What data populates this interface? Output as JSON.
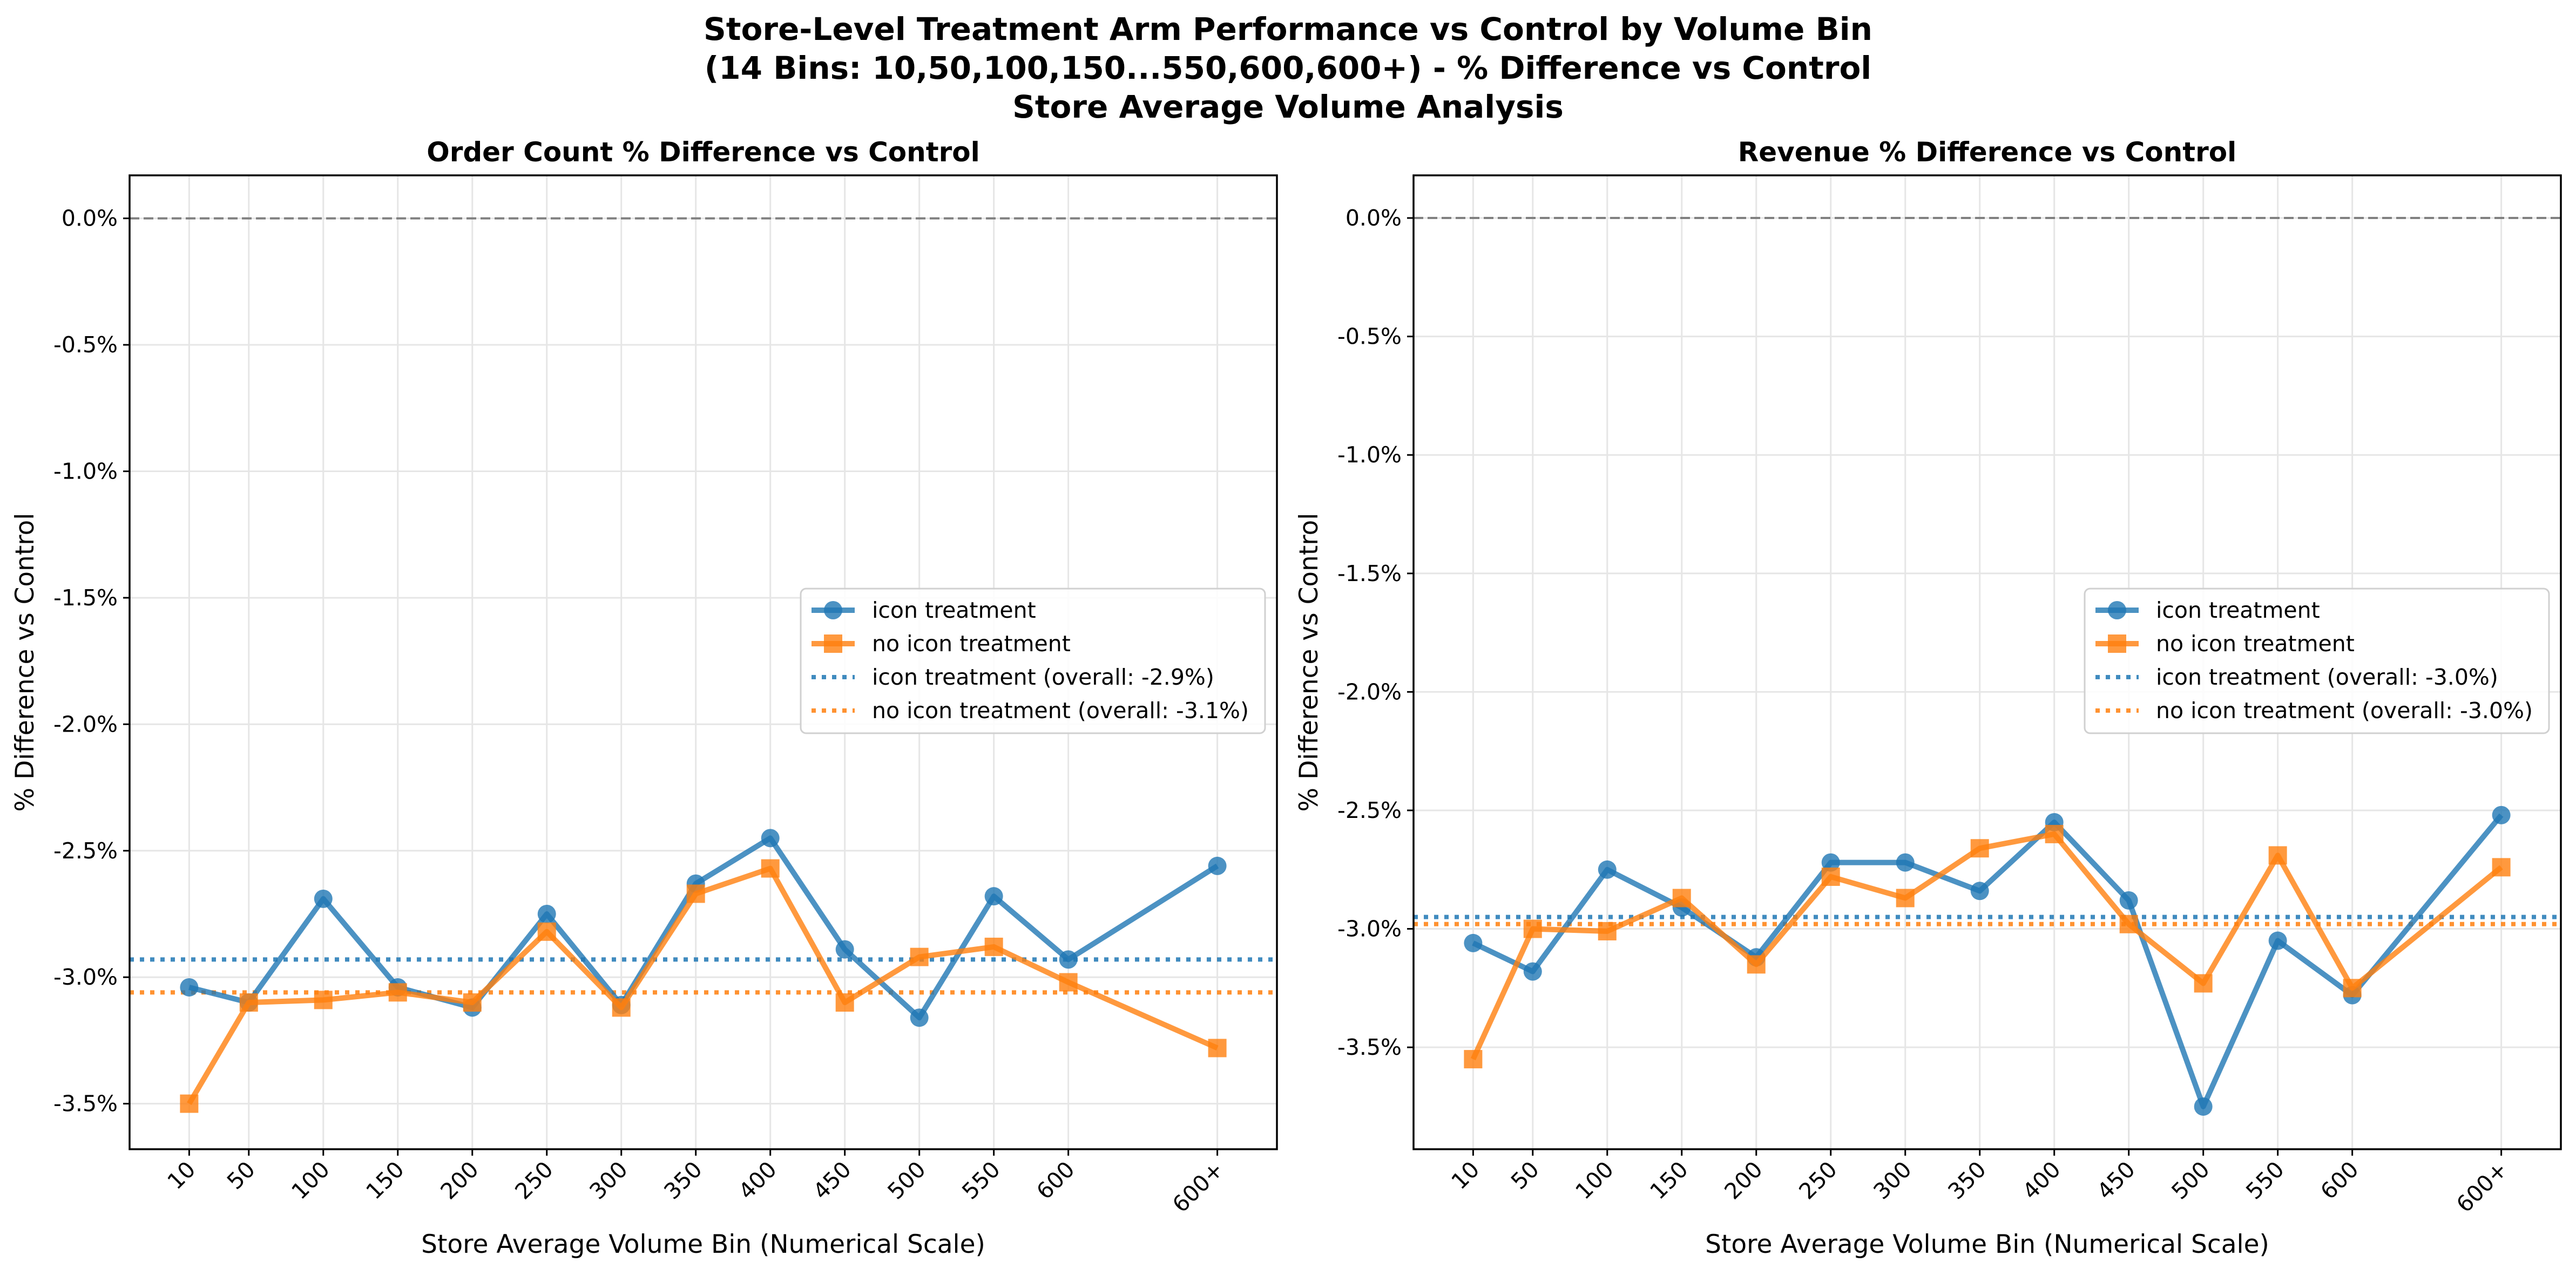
{
  "figure": {
    "title_lines": [
      "Store-Level Treatment Arm Performance vs Control by Volume Bin",
      "(14 Bins: 10,50,100,150...550,600,600+) - % Difference vs Control",
      "Store Average Volume Analysis"
    ]
  },
  "colors": {
    "icon": "#1f77b4",
    "no_icon": "#ff7f0e",
    "zero_line": "#808080",
    "grid": "#e6e6e6"
  },
  "chart_data": [
    {
      "type": "line",
      "title": "Order Count % Difference vs Control",
      "xlabel": "Store Average Volume Bin (Numerical Scale)",
      "ylabel": "% Difference vs Control",
      "categories": [
        "10",
        "50",
        "100",
        "150",
        "200",
        "250",
        "300",
        "350",
        "400",
        "450",
        "500",
        "550",
        "600",
        "600+"
      ],
      "x": [
        10,
        50,
        100,
        150,
        200,
        250,
        300,
        350,
        400,
        450,
        500,
        550,
        600,
        700
      ],
      "xlim": [
        -30,
        740
      ],
      "ylim": [
        -3.68,
        0.17
      ],
      "yticks": [
        0.0,
        -0.5,
        -1.0,
        -1.5,
        -2.0,
        -2.5,
        -3.0,
        -3.5
      ],
      "ytick_labels": [
        "0.0%",
        "-0.5%",
        "-1.0%",
        "-1.5%",
        "-2.0%",
        "-2.5%",
        "-3.0%",
        "-3.5%"
      ],
      "grid": true,
      "legend_position": "center-right",
      "series": [
        {
          "name": "icon treatment",
          "color": "#1f77b4",
          "marker": "circle",
          "values": [
            -3.04,
            -3.1,
            -2.69,
            -3.04,
            -3.12,
            -2.75,
            -3.11,
            -2.63,
            -2.45,
            -2.89,
            -3.16,
            -2.68,
            -2.93,
            -2.56
          ]
        },
        {
          "name": "no icon treatment",
          "color": "#ff7f0e",
          "marker": "square",
          "values": [
            -3.5,
            -3.1,
            -3.09,
            -3.06,
            -3.1,
            -2.82,
            -3.12,
            -2.67,
            -2.57,
            -3.1,
            -2.92,
            -2.88,
            -3.02,
            -3.28
          ]
        }
      ],
      "overall_lines": [
        {
          "name": "icon treatment (overall: -2.9%)",
          "color": "#1f77b4",
          "value": -2.93
        },
        {
          "name": "no icon treatment (overall: -3.1%)",
          "color": "#ff7f0e",
          "value": -3.06
        }
      ],
      "reference_line": 0
    },
    {
      "type": "line",
      "title": "Revenue % Difference vs Control",
      "xlabel": "Store Average Volume Bin (Numerical Scale)",
      "ylabel": "% Difference vs Control",
      "categories": [
        "10",
        "50",
        "100",
        "150",
        "200",
        "250",
        "300",
        "350",
        "400",
        "450",
        "500",
        "550",
        "600",
        "600+"
      ],
      "x": [
        10,
        50,
        100,
        150,
        200,
        250,
        300,
        350,
        400,
        450,
        500,
        550,
        600,
        700
      ],
      "xlim": [
        -30,
        740
      ],
      "ylim": [
        -3.93,
        0.18
      ],
      "yticks": [
        0.0,
        -0.5,
        -1.0,
        -1.5,
        -2.0,
        -2.5,
        -3.0,
        -3.5
      ],
      "ytick_labels": [
        "0.0%",
        "-0.5%",
        "-1.0%",
        "-1.5%",
        "-2.0%",
        "-2.5%",
        "-3.0%",
        "-3.5%"
      ],
      "grid": true,
      "legend_position": "center-right",
      "series": [
        {
          "name": "icon treatment",
          "color": "#1f77b4",
          "marker": "circle",
          "values": [
            -3.06,
            -3.18,
            -2.75,
            -2.91,
            -3.12,
            -2.72,
            -2.72,
            -2.84,
            -2.55,
            -2.88,
            -3.75,
            -3.05,
            -3.28,
            -2.52
          ]
        },
        {
          "name": "no icon treatment",
          "color": "#ff7f0e",
          "marker": "square",
          "values": [
            -3.55,
            -3.0,
            -3.01,
            -2.87,
            -3.15,
            -2.78,
            -2.87,
            -2.66,
            -2.6,
            -2.98,
            -3.23,
            -2.69,
            -3.25,
            -2.74
          ]
        }
      ],
      "overall_lines": [
        {
          "name": "icon treatment (overall: -3.0%)",
          "color": "#1f77b4",
          "value": -2.95
        },
        {
          "name": "no icon treatment (overall: -3.0%)",
          "color": "#ff7f0e",
          "value": -2.98
        }
      ],
      "reference_line": 0
    }
  ]
}
